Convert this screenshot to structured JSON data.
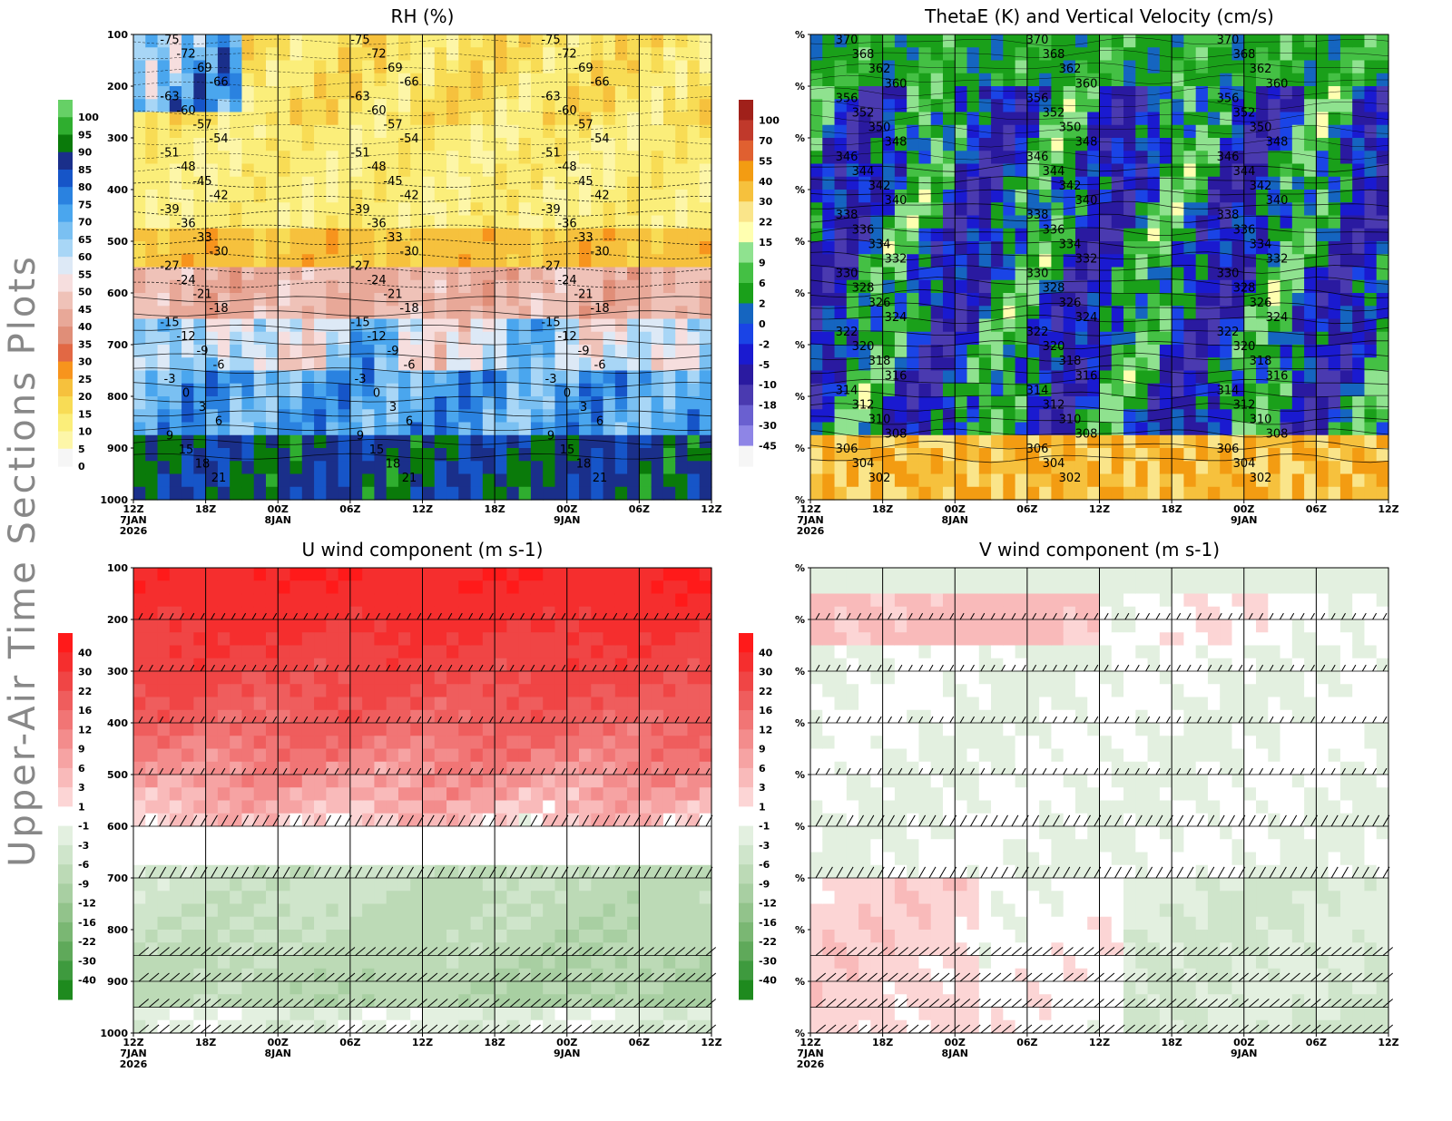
{
  "page": {
    "side_title": "Upper-Air Time Sections Plots"
  },
  "chart_data": [
    {
      "type": "heatmap",
      "title": "RH (%)",
      "x": [
        "12Z 7JAN 2026",
        "18Z",
        "00Z 8JAN",
        "06Z",
        "12Z",
        "18Z",
        "00Z 9JAN",
        "06Z",
        "12Z"
      ],
      "y_pressure_levels": [
        100,
        200,
        300,
        400,
        500,
        600,
        700,
        800,
        900,
        1000
      ],
      "y_reversed": true,
      "grid": "vertical lines every 6 hours",
      "colorbar": {
        "levels": [
          "100",
          "95",
          "90",
          "85",
          "80",
          "75",
          "70",
          "65",
          "60",
          "55",
          "50",
          "45",
          "40",
          "35",
          "30",
          "25",
          "20",
          "15",
          "10",
          "5",
          "0"
        ],
        "colors": [
          "#66d066",
          "#2fae2f",
          "#0a7a0a",
          "#1a2f8a",
          "#1655c8",
          "#2a82e0",
          "#4aa6ee",
          "#7ac0f2",
          "#a8d6f6",
          "#dde9f6",
          "#f6dede",
          "#efc2b8",
          "#e8a898",
          "#e08e78",
          "#e26844",
          "#f7941d",
          "#f6c13d",
          "#f8dc55",
          "#fbee7a",
          "#fdf6a8",
          "#f6f6f6"
        ]
      },
      "contour_labels": [
        "-75",
        "-72",
        "-69",
        "-66",
        "-63",
        "-60",
        "-57",
        "-54",
        "-51",
        "-48",
        "-45",
        "-42",
        "-39",
        "-36",
        "-33",
        "-30",
        "-27",
        "-24",
        "-21",
        "-18",
        "-15",
        "-12",
        "-9",
        "-6",
        "-3",
        "0",
        "3",
        "6",
        "9",
        "15",
        "18",
        "21"
      ],
      "approx_profile": {
        "levels_hPa": [
          150,
          250,
          350,
          450,
          550,
          650,
          750,
          850,
          925,
          975
        ],
        "rh_pct_typical": [
          18,
          12,
          15,
          10,
          25,
          42,
          55,
          75,
          90,
          85
        ]
      }
    },
    {
      "type": "heatmap",
      "title": "ThetaE (K) and Vertical Velocity (cm/s)",
      "x": [
        "12Z 7JAN 2026",
        "18Z",
        "00Z 8JAN",
        "06Z",
        "12Z",
        "18Z",
        "00Z 9JAN",
        "06Z",
        "12Z"
      ],
      "y_tick_labels": [
        "%",
        "%",
        "%",
        "%",
        "%",
        "%",
        "%",
        "%",
        "%",
        "%"
      ],
      "grid": "vertical lines every 6 hours",
      "colorbar": {
        "levels": [
          "100",
          "70",
          "55",
          "40",
          "30",
          "22",
          "15",
          "9",
          "6",
          "2",
          "0",
          "-2",
          "-5",
          "-10",
          "-18",
          "-30",
          "-45"
        ],
        "colors": [
          "#a0201a",
          "#c0392b",
          "#e06030",
          "#f39c12",
          "#f6c13d",
          "#fae58a",
          "#ffffb0",
          "#8fe28f",
          "#44c044",
          "#1aa01a",
          "#1565c0",
          "#1a44e6",
          "#1a1ad0",
          "#2a1aa0",
          "#4a3ab0",
          "#6a60d0",
          "#8e85e6",
          "#f6f6f6"
        ]
      },
      "theta_e_contour_labels": [
        "370",
        "368",
        "362",
        "360",
        "356",
        "352",
        "350",
        "348",
        "346",
        "344",
        "342",
        "340",
        "338",
        "336",
        "334",
        "332",
        "330",
        "328",
        "326",
        "324",
        "322",
        "320",
        "318",
        "316",
        "314",
        "312",
        "310",
        "308",
        "306",
        "304",
        "302"
      ]
    },
    {
      "type": "heatmap",
      "title": "U wind component (m s-1)",
      "x": [
        "12Z 7JAN 2026",
        "18Z",
        "00Z 8JAN",
        "06Z",
        "12Z",
        "18Z",
        "00Z 9JAN",
        "06Z",
        "12Z"
      ],
      "y_pressure_levels": [
        100,
        200,
        300,
        400,
        500,
        600,
        700,
        800,
        900,
        1000
      ],
      "y_reversed": true,
      "grid": "vertical lines every 6 hours",
      "colorbar": {
        "levels": [
          "40",
          "30",
          "22",
          "16",
          "12",
          "9",
          "6",
          "3",
          "1",
          "-1",
          "-3",
          "-6",
          "-9",
          "-12",
          "-16",
          "-22",
          "-30",
          "-40"
        ],
        "colors": [
          "#ff1a1a",
          "#f52e2e",
          "#f04545",
          "#ef5d5d",
          "#f17575",
          "#f38c8c",
          "#f6a3a3",
          "#f9baba",
          "#fcd5d5",
          "#ffffff",
          "#e3f0e0",
          "#cfe5cb",
          "#bcdab6",
          "#a8cfa2",
          "#92c38b",
          "#7ab773",
          "#5fa95a",
          "#3e9a3e",
          "#1e8a1e"
        ]
      },
      "approx_profile": {
        "levels_hPa": [
          150,
          250,
          350,
          450,
          550,
          650,
          750,
          850,
          950
        ],
        "u_ms_typical": [
          35,
          30,
          22,
          14,
          6,
          -1,
          -6,
          -9,
          -5
        ]
      },
      "wind_barb_levels_hPa": [
        200,
        300,
        400,
        500,
        600,
        700,
        850,
        900,
        950,
        1000
      ]
    },
    {
      "type": "heatmap",
      "title": "V wind component (m s-1)",
      "x": [
        "12Z 7JAN 2026",
        "18Z",
        "00Z 8JAN",
        "06Z",
        "12Z",
        "18Z",
        "00Z 9JAN",
        "06Z",
        "12Z"
      ],
      "y_tick_labels": [
        "%",
        "%",
        "%",
        "%",
        "%",
        "%",
        "%",
        "%",
        "%",
        "%"
      ],
      "grid": "vertical lines every 6 hours",
      "colorbar": {
        "levels": [
          "40",
          "30",
          "22",
          "16",
          "12",
          "9",
          "6",
          "3",
          "1",
          "-1",
          "-3",
          "-6",
          "-9",
          "-12",
          "-16",
          "-22",
          "-30",
          "-40"
        ],
        "colors": [
          "#ff1a1a",
          "#f52e2e",
          "#f04545",
          "#ef5d5d",
          "#f17575",
          "#f38c8c",
          "#f6a3a3",
          "#f9baba",
          "#fcd5d5",
          "#ffffff",
          "#e3f0e0",
          "#cfe5cb",
          "#bcdab6",
          "#a8cfa2",
          "#92c38b",
          "#7ab773",
          "#5fa95a",
          "#3e9a3e",
          "#1e8a1e"
        ]
      },
      "approx_profile": {
        "levels_hPa": [
          150,
          250,
          350,
          450,
          550,
          650,
          750,
          850,
          950
        ],
        "v_ms_typical": [
          -2,
          4,
          1,
          -1,
          -2,
          -1,
          2,
          1,
          -2
        ]
      },
      "wind_barb_levels_hPa": [
        200,
        300,
        400,
        500,
        600,
        700,
        850,
        900,
        950,
        1000
      ]
    }
  ]
}
